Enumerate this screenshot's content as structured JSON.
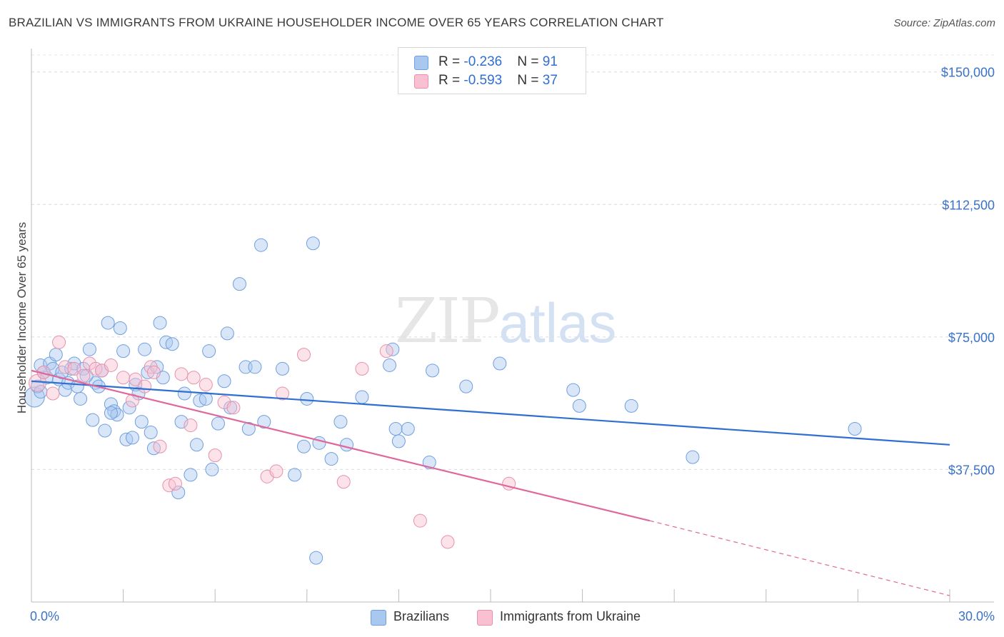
{
  "header": {
    "title": "BRAZILIAN VS IMMIGRANTS FROM UKRAINE HOUSEHOLDER INCOME OVER 65 YEARS CORRELATION CHART",
    "source": "Source: ZipAtlas.com"
  },
  "watermark": {
    "zip": "ZIP",
    "atlas": "atlas"
  },
  "legend": {
    "rows": [
      {
        "r_label": "R = ",
        "r_value": "-0.236",
        "n_label": "N = ",
        "n_value": "91",
        "color": "#a8c8f0",
        "border": "#6f9fe0"
      },
      {
        "r_label": "R = ",
        "r_value": "-0.593",
        "n_label": "N = ",
        "n_value": "37",
        "color": "#f8c0d0",
        "border": "#e890ac"
      }
    ]
  },
  "bottom_legend": {
    "items": [
      {
        "label": "Brazilians",
        "color": "#a8c8f0",
        "border": "#6f9fe0"
      },
      {
        "label": "Immigrants from Ukraine",
        "color": "#f8c0d0",
        "border": "#e890ac"
      }
    ]
  },
  "chart_data": {
    "type": "scatter",
    "title": "BRAZILIAN VS IMMIGRANTS FROM UKRAINE HOUSEHOLDER INCOME OVER 65 YEARS CORRELATION CHART",
    "xlabel": "",
    "ylabel": "Householder Income Over 65 years",
    "xlim": [
      0,
      30
    ],
    "ylim": [
      0,
      155000
    ],
    "x_tick_labels": [
      "0.0%",
      "30.0%"
    ],
    "y_ticks": [
      37500,
      75000,
      112500,
      150000
    ],
    "y_tick_labels": [
      "$37,500",
      "$75,000",
      "$112,500",
      "$150,000"
    ],
    "grid": true,
    "colors": {
      "blue": "#2f6fd1",
      "pink": "#e0679a",
      "axis_text": "#3b72c8"
    },
    "series": [
      {
        "name": "Brazilians",
        "trend": {
          "x": [
            0,
            30
          ],
          "y": [
            62500,
            44500
          ]
        },
        "points": [
          [
            0.1,
            58000
          ],
          [
            0.2,
            61000
          ],
          [
            0.3,
            67000
          ],
          [
            0.4,
            65000
          ],
          [
            0.5,
            63500
          ],
          [
            0.6,
            67500
          ],
          [
            0.7,
            66000
          ],
          [
            0.8,
            70000
          ],
          [
            0.9,
            63000
          ],
          [
            1.0,
            65000
          ],
          [
            1.1,
            60000
          ],
          [
            1.2,
            62000
          ],
          [
            1.3,
            66000
          ],
          [
            1.4,
            67500
          ],
          [
            1.5,
            61000
          ],
          [
            1.6,
            57500
          ],
          [
            1.7,
            66000
          ],
          [
            1.9,
            71500
          ],
          [
            2.0,
            51500
          ],
          [
            2.1,
            62000
          ],
          [
            2.2,
            61000
          ],
          [
            2.3,
            65500
          ],
          [
            2.4,
            48500
          ],
          [
            2.5,
            79000
          ],
          [
            2.6,
            56000
          ],
          [
            2.7,
            54000
          ],
          [
            2.8,
            53000
          ],
          [
            2.9,
            77500
          ],
          [
            3.0,
            71000
          ],
          [
            3.1,
            46000
          ],
          [
            3.2,
            55000
          ],
          [
            3.3,
            46500
          ],
          [
            3.4,
            61500
          ],
          [
            3.5,
            59000
          ],
          [
            3.6,
            51000
          ],
          [
            3.7,
            71500
          ],
          [
            3.8,
            65000
          ],
          [
            3.9,
            48000
          ],
          [
            4.0,
            43500
          ],
          [
            4.1,
            66500
          ],
          [
            4.2,
            79000
          ],
          [
            4.3,
            63500
          ],
          [
            4.4,
            73500
          ],
          [
            4.6,
            73000
          ],
          [
            4.8,
            31000
          ],
          [
            4.9,
            51000
          ],
          [
            5.0,
            59000
          ],
          [
            5.2,
            36000
          ],
          [
            5.4,
            44500
          ],
          [
            5.5,
            57000
          ],
          [
            5.7,
            57500
          ],
          [
            5.8,
            71000
          ],
          [
            5.9,
            37500
          ],
          [
            6.1,
            50500
          ],
          [
            6.3,
            62500
          ],
          [
            6.4,
            76000
          ],
          [
            6.5,
            55000
          ],
          [
            6.8,
            90000
          ],
          [
            7.0,
            66500
          ],
          [
            7.1,
            49000
          ],
          [
            7.3,
            66500
          ],
          [
            7.5,
            101000
          ],
          [
            7.6,
            51000
          ],
          [
            8.2,
            66000
          ],
          [
            8.6,
            36000
          ],
          [
            8.9,
            44000
          ],
          [
            9.0,
            57500
          ],
          [
            9.2,
            101500
          ],
          [
            9.4,
            45000
          ],
          [
            9.8,
            40500
          ],
          [
            10.1,
            51000
          ],
          [
            10.3,
            44500
          ],
          [
            10.8,
            58000
          ],
          [
            11.7,
            67000
          ],
          [
            11.8,
            71500
          ],
          [
            11.9,
            49000
          ],
          [
            12.0,
            45500
          ],
          [
            12.3,
            49000
          ],
          [
            13.0,
            39500
          ],
          [
            13.1,
            65500
          ],
          [
            14.2,
            61000
          ],
          [
            15.3,
            67500
          ],
          [
            17.7,
            60000
          ],
          [
            17.9,
            55500
          ],
          [
            19.6,
            55500
          ],
          [
            21.6,
            41000
          ],
          [
            26.9,
            49000
          ],
          [
            9.3,
            12500
          ],
          [
            0.3,
            59500
          ],
          [
            1.8,
            64000
          ],
          [
            2.6,
            53500
          ]
        ]
      },
      {
        "name": "Immigrants from Ukraine",
        "trend": {
          "x": [
            0,
            20.2
          ],
          "y": [
            65500,
            23000
          ]
        },
        "trend_dashed": {
          "x": [
            20.2,
            30
          ],
          "y": [
            23000,
            1800
          ]
        },
        "points": [
          [
            0.2,
            62000
          ],
          [
            0.4,
            65000
          ],
          [
            0.7,
            59000
          ],
          [
            0.9,
            73500
          ],
          [
            1.1,
            66500
          ],
          [
            1.4,
            66000
          ],
          [
            1.7,
            64000
          ],
          [
            1.9,
            67500
          ],
          [
            2.1,
            66000
          ],
          [
            2.3,
            65500
          ],
          [
            2.6,
            67000
          ],
          [
            3.0,
            63500
          ],
          [
            3.3,
            57000
          ],
          [
            3.4,
            63000
          ],
          [
            3.7,
            61000
          ],
          [
            3.9,
            66500
          ],
          [
            4.0,
            65000
          ],
          [
            4.2,
            44000
          ],
          [
            4.5,
            33000
          ],
          [
            4.7,
            33500
          ],
          [
            4.9,
            64500
          ],
          [
            5.2,
            50000
          ],
          [
            5.3,
            63500
          ],
          [
            5.7,
            61500
          ],
          [
            6.0,
            41500
          ],
          [
            6.3,
            56500
          ],
          [
            6.6,
            55000
          ],
          [
            7.7,
            35500
          ],
          [
            8.0,
            37000
          ],
          [
            8.2,
            59000
          ],
          [
            8.9,
            70000
          ],
          [
            10.2,
            34000
          ],
          [
            10.8,
            66000
          ],
          [
            11.6,
            71000
          ],
          [
            12.7,
            23000
          ],
          [
            13.6,
            17000
          ],
          [
            15.6,
            33500
          ]
        ]
      }
    ]
  }
}
